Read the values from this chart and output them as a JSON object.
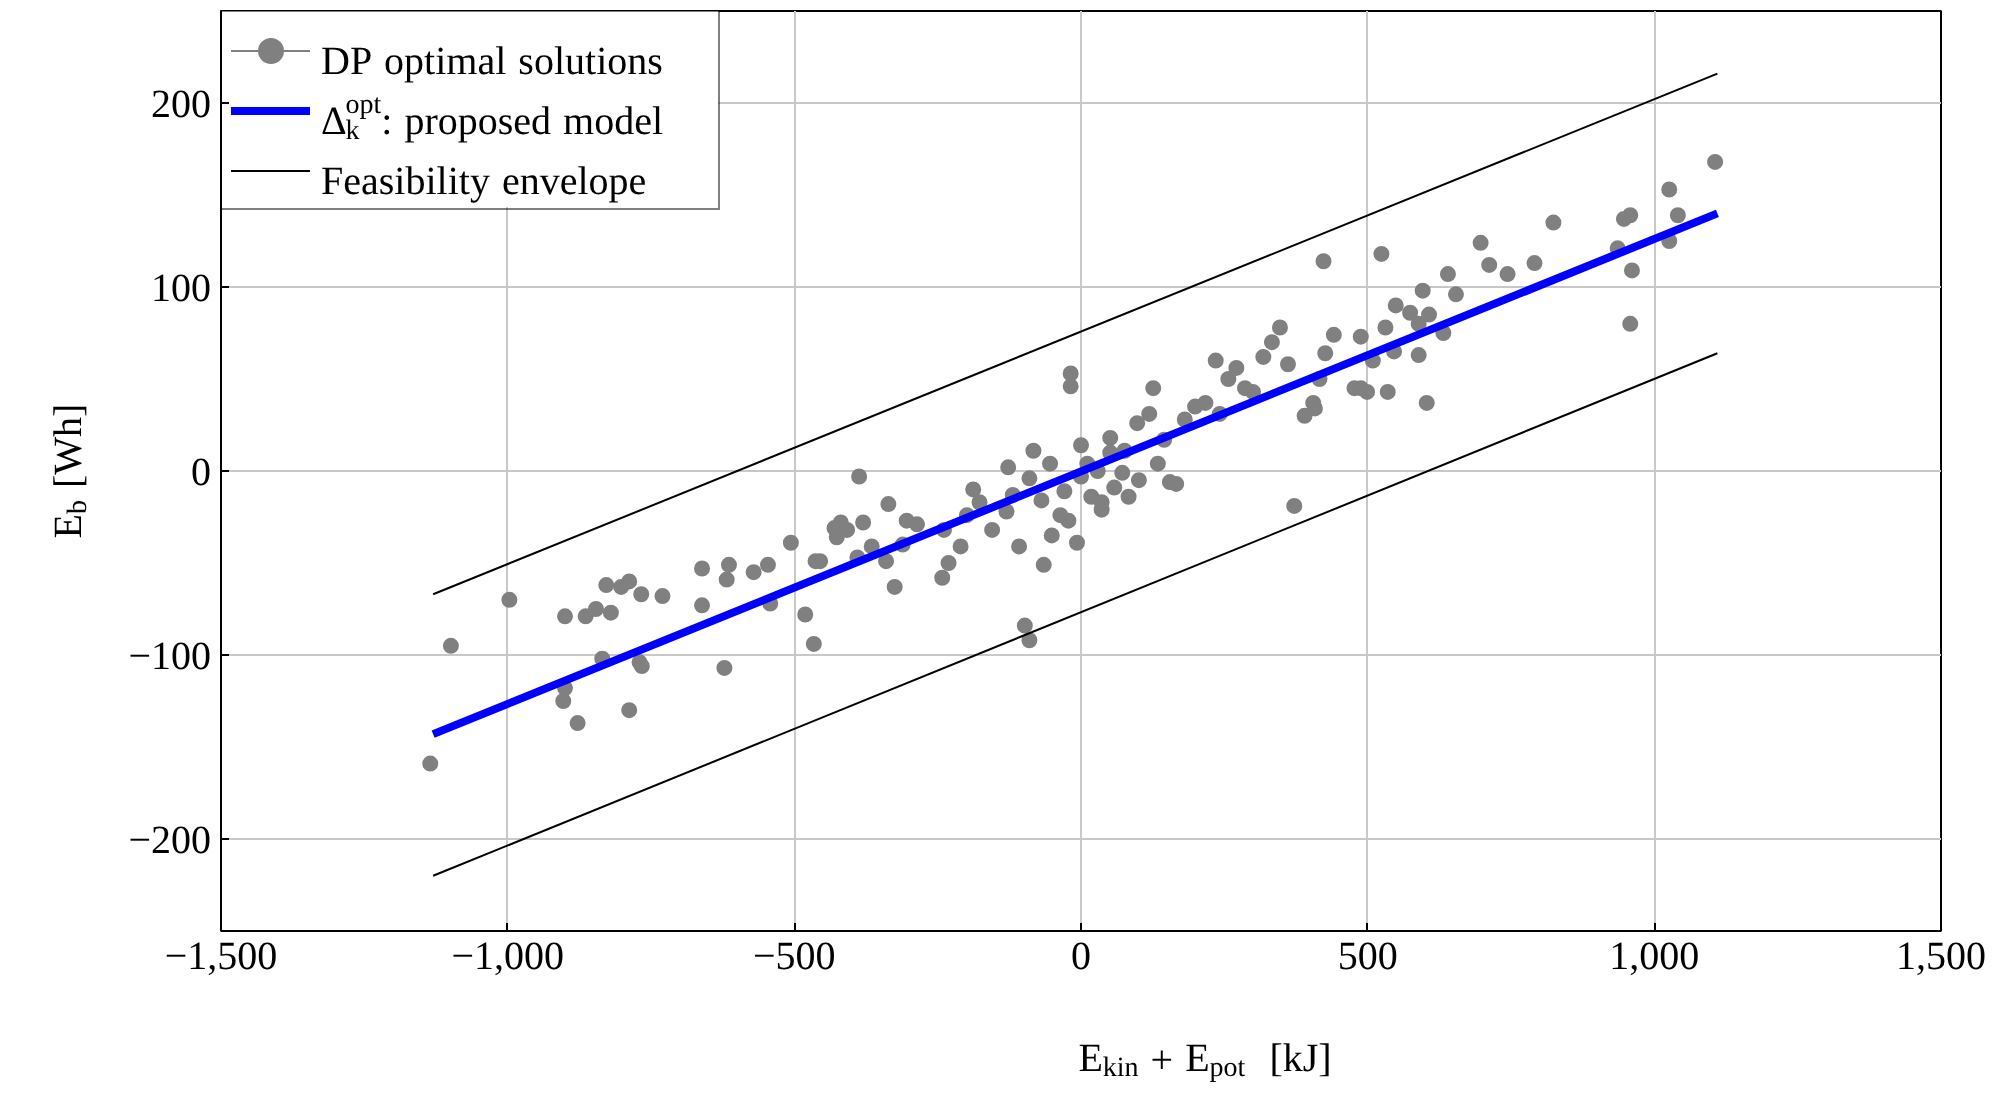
{
  "chart_data": {
    "type": "scatter",
    "xlabel": "E$_{kin}$ + E$_{pot}$  [kJ]",
    "ylabel": "E$_{b}$ [Wh]",
    "xlim": [
      -1500,
      1500
    ],
    "ylim": [
      -250,
      250
    ],
    "xticks": [
      {
        "value": -1500,
        "label": "−1,500"
      },
      {
        "value": -1000,
        "label": "−1,000"
      },
      {
        "value": -500,
        "label": "−500"
      },
      0,
      500,
      {
        "value": 1000,
        "label": "1,000"
      },
      {
        "value": 1500,
        "label": "1,500"
      }
    ],
    "yticks": [
      {
        "value": -200,
        "label": "−200"
      },
      {
        "value": -100,
        "label": "−100"
      },
      0,
      100,
      200
    ],
    "grid": true,
    "legend": "top left",
    "series": [
      {
        "name": "DP optimal solutions",
        "color": "#808080",
        "marker": "circle",
        "x": [
          -1135,
          -1099,
          -997,
          -900,
          -864,
          -828,
          -846,
          -820,
          -802,
          -788,
          -767,
          -730,
          -835,
          -900,
          -903,
          -878,
          -788,
          -770,
          -766,
          -661,
          -661,
          -622,
          -618,
          -614,
          -571,
          -542,
          -546,
          -506,
          -481,
          -466,
          -463,
          -455,
          -430,
          -426,
          -419,
          -408,
          -390,
          -380,
          -387,
          -365,
          -340,
          -336,
          -325,
          -311,
          -304,
          -286,
          -242,
          -239,
          -231,
          -210,
          -199,
          -188,
          -177,
          -155,
          -130,
          -127,
          -119,
          -108,
          -98,
          -90,
          -65,
          -51,
          -36,
          -29,
          -22,
          -18,
          -18,
          -7,
          0,
          11,
          18,
          29,
          36,
          51,
          58,
          76,
          83,
          98,
          101,
          119,
          134,
          145,
          155,
          166,
          181,
          199,
          217,
          242,
          257,
          271,
          286,
          300,
          318,
          333,
          347,
          361,
          390,
          405,
          416,
          408,
          426,
          441,
          488,
          488,
          509,
          535,
          546,
          531,
          549,
          574,
          589,
          603,
          596,
          607,
          640,
          654,
          697,
          712,
          744,
          791,
          824,
          947,
          958,
          936,
          961,
          958,
          1026,
          1041,
          1026,
          1106,
          36,
          372,
          51,
          -54,
          -83,
          -90,
          -69,
          0,
          72,
          126,
          235,
          423,
          524,
          477,
          499,
          589,
          632
        ],
        "values": [
          -159,
          -95,
          -70,
          -79,
          -79,
          -62,
          -75,
          -77,
          -63,
          -60,
          -67,
          -68,
          -102,
          -118,
          -125,
          -137,
          -130,
          -104,
          -106,
          -53,
          -73,
          -107,
          -59,
          -51,
          -55,
          -72,
          -51,
          -39,
          -78,
          -94,
          -49,
          -49,
          -31,
          -36,
          -28,
          -32,
          -47,
          -28,
          -3,
          -41,
          -49,
          -18,
          -63,
          -40,
          -27,
          -29,
          -58,
          -32,
          -50,
          -41,
          -24,
          -10,
          -17,
          -32,
          -22,
          2,
          -13,
          -41,
          -84,
          -92,
          -51,
          -35,
          -24,
          -11,
          -27,
          53,
          46,
          -39,
          -3,
          4,
          -14,
          0,
          -21,
          18,
          -9,
          11,
          -14,
          26,
          -5,
          31,
          4,
          17,
          -6,
          -7,
          28,
          35,
          37,
          31,
          50,
          56,
          45,
          43,
          62,
          70,
          78,
          58,
          30,
          37,
          50,
          34,
          64,
          74,
          73,
          45,
          60,
          43,
          65,
          78,
          90,
          86,
          63,
          37,
          98,
          85,
          107,
          96,
          124,
          112,
          107,
          113,
          135,
          137,
          139,
          121,
          109,
          80,
          153,
          139,
          125,
          168,
          -17,
          -19,
          10,
          4,
          11,
          -4,
          -16,
          14,
          -1,
          45,
          60,
          114,
          118,
          45,
          43,
          80,
          75
        ]
      },
      {
        "name": "Δ$_{k}$$^{opt}$: proposed model",
        "type": "line",
        "color": "#0000ff",
        "x": [
          -1130,
          1110
        ],
        "values": [
          -143,
          140
        ]
      },
      {
        "name": "Feasibility envelope",
        "type": "line",
        "color": "#000000",
        "x": [
          -1130,
          1110
        ],
        "values": [
          -67,
          216
        ]
      },
      {
        "type": "line",
        "color": "#000000",
        "x": [
          -1130,
          1110
        ],
        "values": [
          -220,
          64
        ]
      }
    ]
  }
}
